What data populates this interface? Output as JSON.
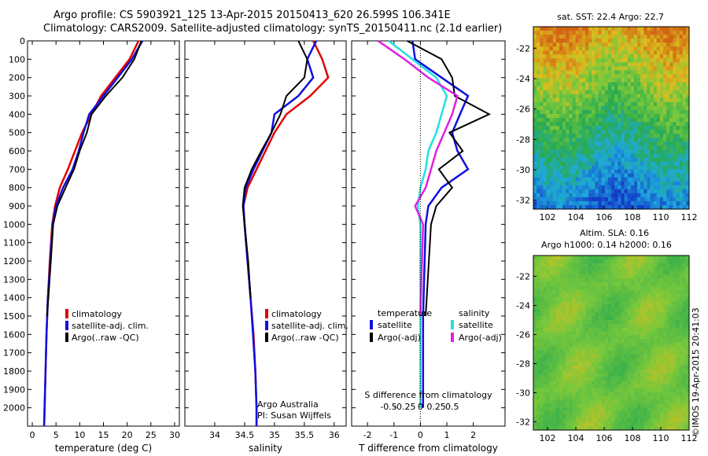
{
  "header": {
    "line1": "Argo profile: CS 5903921_125 13-Apr-2015 20150413_620 26.599S 106.341E",
    "line2": "Climatology: CARS2009. Satellite-adjusted climatology: synTS_20150411.nc (2.1d earlier)"
  },
  "colors": {
    "clim": "#e00000",
    "sat": "#1010e0",
    "argo": "#000000",
    "sat_s": "#22e0e0",
    "argo_s": "#e020e0"
  },
  "chart_data": [
    {
      "type": "line",
      "xlabel": "temperature (deg C)",
      "xlim": [
        -1,
        31
      ],
      "xticks": [
        0,
        5,
        10,
        15,
        20,
        25,
        30
      ],
      "ylim": [
        0,
        2100
      ],
      "yticks": [
        0,
        100,
        200,
        300,
        400,
        500,
        600,
        700,
        800,
        900,
        1000,
        1100,
        1200,
        1300,
        1400,
        1500,
        1600,
        1700,
        1800,
        1900,
        2000
      ],
      "legend": [
        "climatology",
        "satellite-adj. clim.",
        "Argo(..raw -QC)"
      ],
      "series": [
        {
          "name": "climatology",
          "color": "#e00000",
          "x": [
            22.4,
            20.5,
            17.5,
            14.5,
            12.5,
            10.5,
            9,
            7.5,
            5.8,
            4.8,
            4.2,
            3.7,
            3.3,
            3.0,
            2.8,
            2.6,
            2.5
          ],
          "y": [
            0,
            100,
            200,
            300,
            400,
            500,
            600,
            700,
            800,
            900,
            1000,
            1200,
            1400,
            1600,
            1800,
            2000,
            2100
          ]
        },
        {
          "name": "satellite-adj. clim.",
          "color": "#1010e0",
          "x": [
            23.2,
            21,
            18,
            15,
            12,
            10.8,
            9.8,
            8.5,
            6.5,
            5,
            4.3,
            3.8,
            3.3,
            3.0,
            2.8,
            2.6,
            2.5
          ],
          "y": [
            0,
            100,
            200,
            300,
            400,
            500,
            600,
            700,
            800,
            900,
            1000,
            1200,
            1400,
            1600,
            1800,
            2000,
            2100
          ]
        },
        {
          "name": "Argo(..raw -QC)",
          "color": "#000000",
          "x": [
            23,
            21.5,
            19,
            15.5,
            12.5,
            11.5,
            10,
            8.8,
            7,
            5.3,
            4.4,
            3.9,
            3.4,
            3.1
          ],
          "y": [
            0,
            100,
            200,
            300,
            400,
            500,
            600,
            700,
            800,
            900,
            1000,
            1200,
            1400,
            1500
          ]
        }
      ]
    },
    {
      "type": "line",
      "xlabel": "salinity",
      "xlim": [
        33.5,
        36.2
      ],
      "xticks": [
        34,
        34.5,
        35,
        35.5,
        36
      ],
      "xticklabels": [
        "34",
        "34.5",
        "35",
        "35.5",
        "36"
      ],
      "ylim": [
        0,
        2100
      ],
      "legend": [
        "climatology",
        "satellite-adj. clim.",
        "Argo(..raw -QC)"
      ],
      "annotation": [
        "Argo Australia",
        "PI: Susan Wijffels"
      ],
      "series": [
        {
          "name": "climatology",
          "color": "#e00000",
          "x": [
            35.65,
            35.8,
            35.9,
            35.6,
            35.2,
            35.0,
            34.85,
            34.7,
            34.55,
            34.48,
            34.5,
            34.55,
            34.6,
            34.65,
            34.68,
            34.7,
            34.7
          ],
          "y": [
            0,
            100,
            200,
            300,
            400,
            500,
            600,
            700,
            800,
            900,
            1000,
            1200,
            1400,
            1600,
            1800,
            2000,
            2100
          ]
        },
        {
          "name": "satellite-adj. clim.",
          "color": "#1010e0",
          "x": [
            35.7,
            35.55,
            35.65,
            35.4,
            35.0,
            34.95,
            34.8,
            34.65,
            34.52,
            34.48,
            34.5,
            34.55,
            34.6,
            34.64,
            34.68,
            34.7,
            34.7
          ],
          "y": [
            0,
            100,
            200,
            300,
            400,
            500,
            600,
            700,
            800,
            900,
            1000,
            1200,
            1400,
            1600,
            1800,
            2000,
            2100
          ]
        },
        {
          "name": "Argo(..raw -QC)",
          "color": "#000000",
          "x": [
            35.4,
            35.55,
            35.5,
            35.2,
            35.1,
            34.95,
            34.78,
            34.62,
            34.5,
            34.47,
            34.5,
            34.56,
            34.6
          ],
          "y": [
            0,
            100,
            200,
            300,
            400,
            500,
            600,
            700,
            800,
            900,
            1000,
            1200,
            1400
          ]
        }
      ]
    },
    {
      "type": "line",
      "xlabel": "T difference from climatology",
      "x2label": "S difference from climatology",
      "xlim": [
        -2.6,
        3.2
      ],
      "xticks": [
        -2,
        -1,
        0,
        1,
        2
      ],
      "x2ticks": [
        -0.5,
        -0.25,
        0,
        0.25,
        0.5
      ],
      "x2ticklabels": [
        "-0.5",
        "-0.25",
        "0",
        "0.25",
        "0.5"
      ],
      "ylim": [
        0,
        2100
      ],
      "legend_title_t": "temperature",
      "legend_title_s": "salinity",
      "legend": [
        "satellite",
        "Argo(-adj)",
        "satellite",
        "Argo(-adj)"
      ],
      "series": [
        {
          "name": "satellite",
          "color": "#1010e0",
          "x": [
            -0.3,
            -0.2,
            0.8,
            1.8,
            1.5,
            1.2,
            1.4,
            1.8,
            0.8,
            0.3,
            0.2,
            0.1,
            0.1
          ],
          "y": [
            0,
            100,
            200,
            300,
            400,
            500,
            600,
            700,
            800,
            900,
            1000,
            1500,
            2000
          ]
        },
        {
          "name": "Argo(-adj)",
          "color": "#000000",
          "x": [
            -0.5,
            0.8,
            1.2,
            1.3,
            2.6,
            1.1,
            1.6,
            0.7,
            1.2,
            0.6,
            0.4,
            0.2
          ],
          "y": [
            0,
            100,
            200,
            300,
            400,
            500,
            600,
            700,
            800,
            900,
            1000,
            1500
          ]
        },
        {
          "name": "satellite",
          "color": "#22e0e0",
          "x": [
            -1.2,
            -0.3,
            0.6,
            1.0,
            0.8,
            0.6,
            0.3,
            0.2,
            0.0,
            -0.1,
            0.0,
            0.0,
            0.0
          ],
          "y": [
            0,
            100,
            200,
            300,
            400,
            500,
            600,
            700,
            800,
            900,
            1000,
            1500,
            2000
          ]
        },
        {
          "name": "Argo(-adj)",
          "color": "#e020e0",
          "x": [
            -1.6,
            -0.6,
            0.3,
            1.4,
            1.2,
            0.9,
            0.6,
            0.4,
            0.2,
            -0.2,
            0.1,
            0.0
          ],
          "y": [
            0,
            100,
            200,
            300,
            400,
            500,
            600,
            700,
            800,
            900,
            1000,
            1500
          ]
        }
      ]
    },
    {
      "type": "heatmap",
      "title": "sat. SST: 22.4 Argo: 22.7",
      "xticks": [
        102,
        104,
        106,
        108,
        110,
        112
      ],
      "yticks": [
        -22,
        -24,
        -26,
        -28,
        -30,
        -32
      ]
    },
    {
      "type": "heatmap",
      "title_line1": "Altim. SLA: 0.16",
      "title_line2": "Argo h1000: 0.14 h2000: 0.16",
      "xticks": [
        102,
        104,
        106,
        108,
        110,
        112
      ],
      "yticks": [
        -22,
        -24,
        -26,
        -28,
        -30,
        -32
      ]
    }
  ],
  "footer": {
    "stamp": "©IMOS 19-Apr-2015 20:41:03"
  }
}
